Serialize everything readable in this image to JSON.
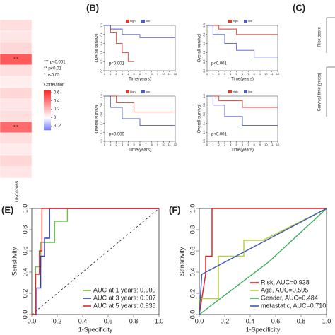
{
  "chart_data": [
    {
      "type": "heatmap",
      "columns": [
        "LINC02065"
      ],
      "values": [
        0.1,
        0.08,
        0.12,
        0.5,
        0.1,
        0.05,
        0.12,
        0.08,
        0.1,
        0.45,
        0.1,
        0.06,
        0.12,
        0.08
      ],
      "stars": [
        null,
        null,
        null,
        "***",
        null,
        null,
        null,
        null,
        null,
        "***",
        null,
        null,
        null,
        null
      ],
      "legend": [
        "*** p<0.001",
        "** p<0.01",
        "* p<0.05"
      ],
      "colorbar_title": "Correlation",
      "clim": [
        -0.3,
        0.65
      ],
      "cticks": [
        0.6,
        0.4,
        0.2,
        0,
        -0.2
      ]
    },
    {
      "type": "survival",
      "panel": "(B)",
      "xlabel": "Time(years)",
      "ylabel": "Overall survival",
      "annotation": "p<0.001",
      "xlim": [
        0,
        12
      ],
      "xticks": [
        0,
        1,
        2,
        3,
        4,
        5,
        6,
        7,
        8,
        9,
        10,
        11,
        12
      ],
      "ylim": [
        0,
        1
      ],
      "yticks": [
        {
          "value": 0,
          "label": "0.0"
        },
        {
          "value": 0.2,
          "label": "0.2"
        },
        {
          "value": 0.4,
          "label": "0.4"
        },
        {
          "value": 0.6,
          "label": "0.6"
        },
        {
          "value": 0.8,
          "label": "0.8"
        },
        {
          "value": 1,
          "label": "1.0"
        }
      ],
      "series": [
        {
          "name": "high",
          "color": "#e8382c",
          "x": [
            0,
            1,
            1,
            2,
            2,
            3,
            3,
            4,
            4,
            5
          ],
          "y": [
            1,
            1,
            0.85,
            0.85,
            0.6,
            0.6,
            0.4,
            0.4,
            0.2,
            0.2
          ]
        },
        {
          "name": "low",
          "color": "#4e5bc9",
          "x": [
            0,
            1,
            1,
            3,
            3,
            6,
            6,
            12
          ],
          "y": [
            1,
            1,
            0.92,
            0.92,
            0.8,
            0.8,
            0.73,
            0.73
          ]
        }
      ]
    },
    {
      "type": "survival",
      "xlabel": "Time(years)",
      "ylabel": "Overall survival",
      "annotation": "p<0.001",
      "xlim": [
        0,
        12
      ],
      "xticks": [
        0,
        1,
        2,
        3,
        4,
        5,
        6,
        7,
        8,
        9,
        10,
        11,
        12
      ],
      "ylim": [
        0,
        1
      ],
      "yticks": [
        {
          "value": 0,
          "label": "0.0"
        },
        {
          "value": 0.2,
          "label": "0.2"
        },
        {
          "value": 0.4,
          "label": "0.4"
        },
        {
          "value": 0.6,
          "label": "0.6"
        },
        {
          "value": 0.8,
          "label": "0.8"
        },
        {
          "value": 1,
          "label": "1.0"
        }
      ],
      "series": [
        {
          "name": "high",
          "color": "#e8382c",
          "x": [
            0,
            2,
            2,
            5,
            5,
            12
          ],
          "y": [
            1,
            1,
            0.92,
            0.92,
            0.8,
            0.8
          ]
        },
        {
          "name": "low",
          "color": "#4e5bc9",
          "x": [
            0,
            1,
            1,
            3,
            3,
            5,
            5,
            8,
            8,
            12
          ],
          "y": [
            1,
            1,
            0.8,
            0.8,
            0.6,
            0.6,
            0.45,
            0.45,
            0.3,
            0.3
          ]
        }
      ]
    },
    {
      "type": "survival",
      "xlabel": "Time(years)",
      "ylabel": "Overall survival",
      "annotation": "p=0.009",
      "xlim": [
        0,
        12
      ],
      "xticks": [
        0,
        1,
        2,
        3,
        4,
        5,
        6,
        7,
        8,
        9,
        10,
        11,
        12
      ],
      "ylim": [
        0,
        1
      ],
      "yticks": [
        {
          "value": 0,
          "label": "0.0"
        },
        {
          "value": 0.2,
          "label": "0.2"
        },
        {
          "value": 0.4,
          "label": "0.4"
        },
        {
          "value": 0.6,
          "label": "0.6"
        },
        {
          "value": 0.8,
          "label": "0.8"
        },
        {
          "value": 1,
          "label": "1.0"
        }
      ],
      "series": [
        {
          "name": "high",
          "color": "#e8382c",
          "x": [
            0,
            2,
            2,
            5,
            5,
            12
          ],
          "y": [
            1,
            1,
            0.85,
            0.85,
            0.65,
            0.65
          ]
        },
        {
          "name": "low",
          "color": "#4e5bc9",
          "x": [
            0,
            1,
            1,
            3,
            3,
            6,
            6,
            12
          ],
          "y": [
            1,
            1,
            0.75,
            0.75,
            0.5,
            0.5,
            0.35,
            0.35
          ]
        }
      ]
    },
    {
      "type": "survival",
      "xlabel": "Time(years)",
      "ylabel": "Overall survival",
      "annotation": "p<0.001",
      "xlim": [
        0,
        12
      ],
      "xticks": [
        0,
        1,
        2,
        3,
        4,
        5,
        6,
        7,
        8,
        9,
        10,
        11,
        12
      ],
      "ylim": [
        0,
        1
      ],
      "yticks": [
        {
          "value": 0,
          "label": "0.0"
        },
        {
          "value": 0.2,
          "label": "0.2"
        },
        {
          "value": 0.4,
          "label": "0.4"
        },
        {
          "value": 0.6,
          "label": "0.6"
        },
        {
          "value": 0.8,
          "label": "0.8"
        },
        {
          "value": 1,
          "label": "1.0"
        }
      ],
      "series": [
        {
          "name": "high",
          "color": "#e8382c",
          "x": [
            0,
            2,
            2,
            6,
            6,
            12
          ],
          "y": [
            1,
            1,
            0.9,
            0.9,
            0.75,
            0.75
          ]
        },
        {
          "name": "low",
          "color": "#4e5bc9",
          "x": [
            0,
            1,
            1,
            3,
            3,
            6,
            6,
            12
          ],
          "y": [
            1,
            1,
            0.8,
            0.8,
            0.55,
            0.55,
            0.35,
            0.35
          ]
        }
      ]
    },
    {
      "type": "roc",
      "panel": "(E)",
      "xlabel": "1-Specificity",
      "ylabel": "Sensitivity",
      "diagonal": true,
      "xlim": [
        0,
        1
      ],
      "ylim": [
        0,
        1
      ],
      "xticks": [
        {
          "value": 0,
          "label": "0.0"
        },
        {
          "value": 0.2,
          "label": "0.2"
        },
        {
          "value": 0.4,
          "label": "0.4"
        },
        {
          "value": 0.6,
          "label": "0.6"
        },
        {
          "value": 0.8,
          "label": "0.8"
        },
        {
          "value": 1,
          "label": "1.0"
        }
      ],
      "yticks": [
        {
          "value": 0,
          "label": "0.0"
        },
        {
          "value": 0.2,
          "label": "0.2"
        },
        {
          "value": 0.4,
          "label": "0.4"
        },
        {
          "value": 0.6,
          "label": "0.6"
        },
        {
          "value": 0.8,
          "label": "0.8"
        },
        {
          "value": 1,
          "label": "1.0"
        }
      ],
      "series": [
        {
          "name": "AUC at 1 years: 0.900",
          "color": "#6cc24a",
          "x": [
            0,
            0.03,
            0.03,
            0.07,
            0.07,
            0.18,
            0.18,
            0.28,
            0.28,
            1
          ],
          "y": [
            0,
            0,
            0.45,
            0.45,
            0.68,
            0.68,
            0.88,
            0.88,
            1,
            1
          ]
        },
        {
          "name": "AUC at 3 years: 0.907",
          "color": "#2b3fbf",
          "x": [
            0,
            0.04,
            0.04,
            0.07,
            0.07,
            0.1,
            0.1,
            0.14,
            0.14,
            1
          ],
          "y": [
            0,
            0,
            0.25,
            0.25,
            0.55,
            0.55,
            0.72,
            0.72,
            1,
            1
          ]
        },
        {
          "name": "AUC at 5 years: 0.938",
          "color": "#e8251f",
          "x": [
            0,
            0.03,
            0.03,
            0.06,
            0.06,
            0.08,
            0.08,
            1
          ],
          "y": [
            0,
            0,
            0.38,
            0.38,
            0.6,
            0.6,
            1,
            1
          ]
        }
      ]
    },
    {
      "type": "roc",
      "panel": "(F)",
      "xlabel": "1-Specificity",
      "ylabel": "Sensitivity",
      "diagonal": false,
      "xlim": [
        0,
        1
      ],
      "ylim": [
        0,
        1
      ],
      "xticks": [
        {
          "value": 0,
          "label": "0.0"
        },
        {
          "value": 0.2,
          "label": "0.2"
        },
        {
          "value": 0.4,
          "label": "0.4"
        },
        {
          "value": 0.6,
          "label": "0.6"
        },
        {
          "value": 0.8,
          "label": "0.8"
        },
        {
          "value": 1,
          "label": "1.0"
        }
      ],
      "yticks": [
        {
          "value": 0,
          "label": "0.0"
        },
        {
          "value": 0.2,
          "label": "0.2"
        },
        {
          "value": 0.4,
          "label": "0.4"
        },
        {
          "value": 0.6,
          "label": "0.6"
        },
        {
          "value": 0.8,
          "label": "0.8"
        },
        {
          "value": 1,
          "label": "1.0"
        }
      ],
      "series": [
        {
          "name": "Risk, AUC=0.938",
          "color": "#e41a1c",
          "x": [
            0,
            0.05,
            0.05,
            0.1,
            0.1,
            1
          ],
          "y": [
            0,
            0.38,
            0.55,
            0.55,
            1,
            1
          ]
        },
        {
          "name": "Age, AUC=0.595",
          "color": "#b5cf3a",
          "x": [
            0,
            0,
            0.15,
            0.15,
            0.35,
            0.35,
            0.5,
            1
          ],
          "y": [
            0,
            0.15,
            0.15,
            0.55,
            0.55,
            0.7,
            0.7,
            1
          ]
        },
        {
          "name": "Gender, AUC=0.484",
          "color": "#3cae5a",
          "x": [
            0,
            0.55,
            1
          ],
          "y": [
            0,
            0.5,
            1
          ]
        },
        {
          "name": "metastatic, AUC=0.710",
          "color": "#3b5bb5",
          "x": [
            0,
            0.02,
            1
          ],
          "y": [
            0,
            0.38,
            1
          ]
        }
      ]
    }
  ],
  "panel_c": {
    "label": "(C)",
    "texts": [
      "Risk score",
      "Survival time (years)"
    ]
  }
}
